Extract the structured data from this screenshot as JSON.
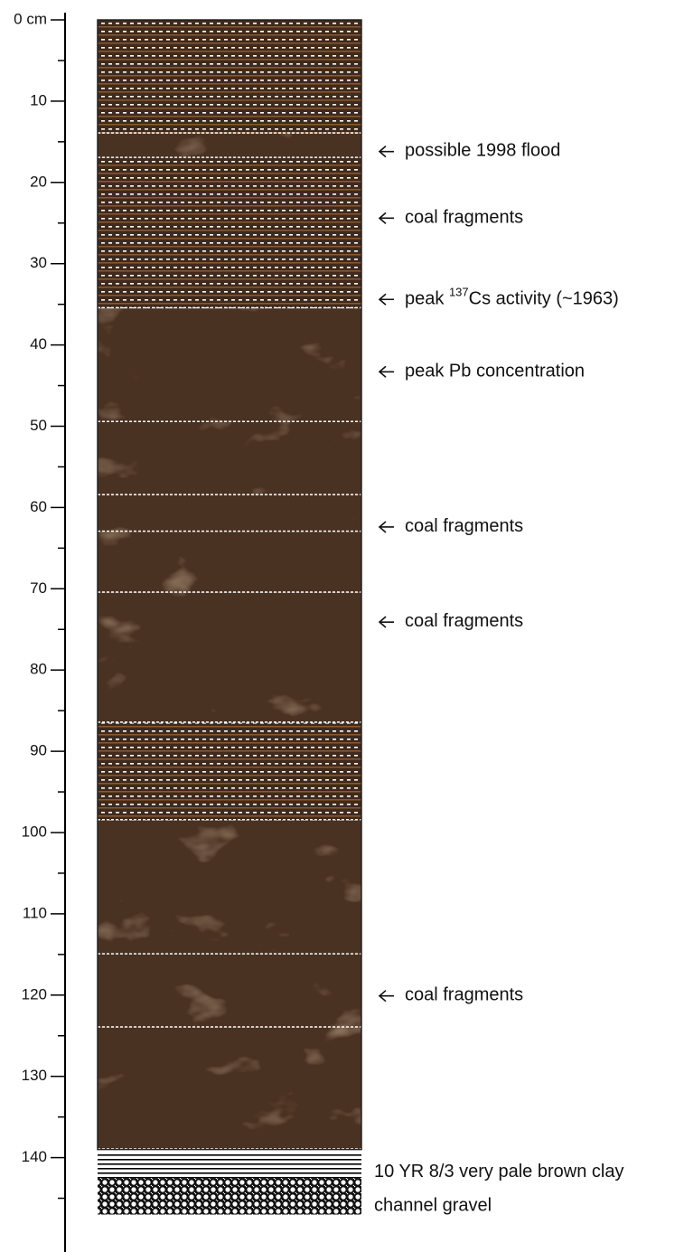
{
  "axis": {
    "lim": [
      0,
      151
    ],
    "ticks": [
      {
        "value": 0,
        "label": "0 cm"
      },
      10,
      20,
      30,
      40,
      50,
      60,
      70,
      80,
      90,
      100,
      110,
      120,
      130,
      140
    ],
    "minor_ticks": [
      5,
      15,
      25,
      35,
      45,
      55,
      65,
      75,
      85,
      95,
      105,
      115,
      125,
      135,
      145
    ]
  },
  "layers": [
    {
      "top": 0,
      "bottom": 14,
      "fill": "striped"
    },
    {
      "top": 14,
      "bottom": 17,
      "fill": "marbled"
    },
    {
      "top": 17,
      "bottom": 35.5,
      "fill": "striped"
    },
    {
      "top": 35.5,
      "bottom": 49.5,
      "fill": "marbled"
    },
    {
      "top": 49.5,
      "bottom": 58.5,
      "fill": "marbled"
    },
    {
      "top": 58.5,
      "bottom": 63,
      "fill": "marbled"
    },
    {
      "top": 63,
      "bottom": 70.5,
      "fill": "marbled"
    },
    {
      "top": 70.5,
      "bottom": 86.5,
      "fill": "marbled"
    },
    {
      "top": 86.5,
      "bottom": 98.5,
      "fill": "striped"
    },
    {
      "top": 98.5,
      "bottom": 115,
      "fill": "marbled"
    },
    {
      "top": 115,
      "bottom": 124,
      "fill": "marbled"
    },
    {
      "top": 124,
      "bottom": 139,
      "fill": "marbled"
    },
    {
      "top": 139.5,
      "bottom": 142.5,
      "fill": "lines"
    },
    {
      "top": 142.5,
      "bottom": 147,
      "fill": "gravel"
    }
  ],
  "annotations": [
    {
      "depth": 16.2,
      "arrow": true,
      "label": "possible 1998 flood"
    },
    {
      "depth": 24.4,
      "arrow": true,
      "label": "coal fragments"
    },
    {
      "depth": 34.4,
      "arrow": true,
      "label": "peak ",
      "superscript": "137",
      "label_rest": "Cs activity (~1963)"
    },
    {
      "depth": 43.3,
      "arrow": true,
      "label": "peak Pb concentration"
    },
    {
      "depth": 62.4,
      "arrow": true,
      "label": "coal fragments"
    },
    {
      "depth": 74.1,
      "arrow": true,
      "label": "coal fragments"
    },
    {
      "depth": 120.1,
      "arrow": true,
      "label": "coal fragments"
    },
    {
      "depth": 141.8,
      "arrow": false,
      "label": "10 YR 8/3 very pale brown clay"
    },
    {
      "depth": 146,
      "arrow": false,
      "label": "channel gravel"
    }
  ]
}
